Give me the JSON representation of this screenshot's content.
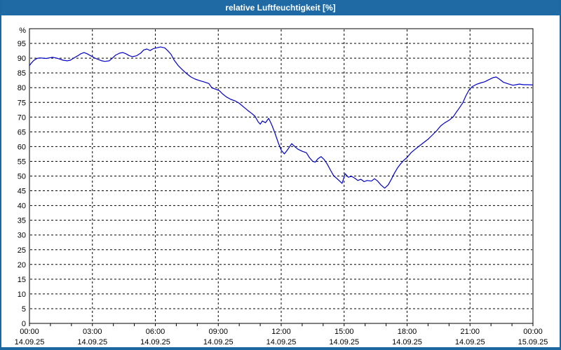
{
  "window": {
    "title": "relative Luftfeuchtigkeit [%]"
  },
  "colors": {
    "titlebar": "#1f6aa5",
    "window_border": "#1c67a0",
    "line": "#0000c8",
    "grid": "#000000",
    "frame": "#000000",
    "background": "#ffffff",
    "label_text": "#000000"
  },
  "chart_data": {
    "type": "line",
    "title": "relative Luftfeuchtigkeit [%]",
    "unit_label": "%",
    "xlabel": "",
    "ylabel": "%",
    "xlim": [
      0,
      24
    ],
    "ylim": [
      0,
      100
    ],
    "grid": true,
    "legend": "none",
    "y_ticks": [
      0,
      5,
      10,
      15,
      20,
      25,
      30,
      35,
      40,
      45,
      50,
      55,
      60,
      65,
      70,
      75,
      80,
      85,
      90,
      95
    ],
    "x_ticks": [
      {
        "hours": 0,
        "time": "00:00",
        "date": "14.09.25"
      },
      {
        "hours": 3,
        "time": "03:00",
        "date": "14.09.25"
      },
      {
        "hours": 6,
        "time": "06:00",
        "date": "14.09.25"
      },
      {
        "hours": 9,
        "time": "09:00",
        "date": "14.09.25"
      },
      {
        "hours": 12,
        "time": "12:00",
        "date": "14.09.25"
      },
      {
        "hours": 15,
        "time": "15:00",
        "date": "14.09.25"
      },
      {
        "hours": 18,
        "time": "18:00",
        "date": "14.09.25"
      },
      {
        "hours": 21,
        "time": "21:00",
        "date": "14.09.25"
      },
      {
        "hours": 24,
        "time": "00:00",
        "date": "15.09.25"
      }
    ],
    "minor_x_tick_every_hours": 1,
    "series": [
      {
        "name": "relative Luftfeuchtigkeit",
        "points": [
          [
            0.0,
            87.5
          ],
          [
            0.1,
            88.4
          ],
          [
            0.2,
            89.2
          ],
          [
            0.35,
            89.9
          ],
          [
            0.5,
            90.1
          ],
          [
            0.65,
            90.0
          ],
          [
            0.8,
            89.9
          ],
          [
            0.95,
            90.1
          ],
          [
            1.1,
            90.3
          ],
          [
            1.25,
            90.1
          ],
          [
            1.4,
            89.8
          ],
          [
            1.6,
            89.3
          ],
          [
            1.8,
            89.1
          ],
          [
            1.95,
            89.3
          ],
          [
            2.1,
            90.0
          ],
          [
            2.3,
            90.8
          ],
          [
            2.45,
            91.5
          ],
          [
            2.6,
            91.9
          ],
          [
            2.75,
            91.5
          ],
          [
            2.95,
            90.7
          ],
          [
            3.1,
            90.1
          ],
          [
            3.3,
            89.5
          ],
          [
            3.45,
            89.1
          ],
          [
            3.6,
            88.9
          ],
          [
            3.8,
            89.1
          ],
          [
            3.95,
            90.0
          ],
          [
            4.1,
            91.0
          ],
          [
            4.3,
            91.7
          ],
          [
            4.45,
            91.9
          ],
          [
            4.6,
            91.5
          ],
          [
            4.75,
            90.9
          ],
          [
            4.9,
            90.5
          ],
          [
            5.1,
            90.8
          ],
          [
            5.3,
            91.7
          ],
          [
            5.45,
            92.8
          ],
          [
            5.6,
            93.1
          ],
          [
            5.75,
            92.6
          ],
          [
            5.9,
            93.2
          ],
          [
            6.05,
            93.5
          ],
          [
            6.25,
            93.8
          ],
          [
            6.45,
            93.5
          ],
          [
            6.6,
            92.5
          ],
          [
            6.75,
            91.3
          ],
          [
            6.9,
            89.3
          ],
          [
            7.1,
            87.4
          ],
          [
            7.3,
            86.0
          ],
          [
            7.5,
            84.7
          ],
          [
            7.7,
            83.6
          ],
          [
            7.9,
            82.9
          ],
          [
            8.1,
            82.4
          ],
          [
            8.3,
            82.0
          ],
          [
            8.55,
            81.4
          ],
          [
            8.7,
            79.9
          ],
          [
            8.9,
            79.4
          ],
          [
            9.05,
            79.0
          ],
          [
            9.2,
            77.9
          ],
          [
            9.4,
            76.8
          ],
          [
            9.6,
            76.0
          ],
          [
            9.8,
            75.5
          ],
          [
            10.0,
            74.7
          ],
          [
            10.2,
            73.5
          ],
          [
            10.4,
            72.3
          ],
          [
            10.6,
            71.2
          ],
          [
            10.75,
            70.3
          ],
          [
            10.9,
            68.4
          ],
          [
            11.0,
            67.6
          ],
          [
            11.1,
            68.7
          ],
          [
            11.25,
            68.1
          ],
          [
            11.4,
            69.6
          ],
          [
            11.55,
            67.4
          ],
          [
            11.7,
            64.6
          ],
          [
            11.85,
            61.5
          ],
          [
            12.0,
            58.8
          ],
          [
            12.15,
            57.5
          ],
          [
            12.3,
            58.9
          ],
          [
            12.5,
            61.0
          ],
          [
            12.65,
            60.0
          ],
          [
            12.8,
            59.1
          ],
          [
            13.0,
            58.4
          ],
          [
            13.2,
            57.9
          ],
          [
            13.35,
            56.2
          ],
          [
            13.5,
            55.0
          ],
          [
            13.62,
            54.7
          ],
          [
            13.75,
            55.9
          ],
          [
            13.9,
            56.6
          ],
          [
            14.05,
            55.6
          ],
          [
            14.2,
            54.0
          ],
          [
            14.35,
            52.0
          ],
          [
            14.5,
            50.1
          ],
          [
            14.65,
            49.2
          ],
          [
            14.8,
            48.2
          ],
          [
            14.9,
            47.5
          ],
          [
            15.05,
            50.8
          ],
          [
            15.2,
            49.6
          ],
          [
            15.35,
            49.9
          ],
          [
            15.5,
            49.3
          ],
          [
            15.65,
            48.5
          ],
          [
            15.8,
            48.9
          ],
          [
            15.95,
            48.1
          ],
          [
            16.1,
            48.5
          ],
          [
            16.3,
            48.3
          ],
          [
            16.45,
            49.1
          ],
          [
            16.6,
            48.3
          ],
          [
            16.75,
            47.0
          ],
          [
            16.93,
            45.9
          ],
          [
            17.1,
            47.0
          ],
          [
            17.25,
            48.9
          ],
          [
            17.4,
            51.0
          ],
          [
            17.55,
            52.8
          ],
          [
            17.7,
            54.2
          ],
          [
            17.85,
            55.4
          ],
          [
            18.0,
            56.3
          ],
          [
            18.2,
            58.0
          ],
          [
            18.4,
            59.2
          ],
          [
            18.6,
            60.3
          ],
          [
            18.8,
            61.4
          ],
          [
            19.0,
            62.5
          ],
          [
            19.2,
            63.9
          ],
          [
            19.4,
            65.3
          ],
          [
            19.6,
            67.0
          ],
          [
            19.8,
            68.1
          ],
          [
            20.0,
            68.9
          ],
          [
            20.2,
            70.1
          ],
          [
            20.35,
            71.7
          ],
          [
            20.5,
            73.2
          ],
          [
            20.65,
            74.8
          ],
          [
            20.8,
            77.2
          ],
          [
            20.95,
            79.2
          ],
          [
            21.1,
            80.3
          ],
          [
            21.3,
            81.1
          ],
          [
            21.5,
            81.6
          ],
          [
            21.7,
            82.0
          ],
          [
            21.9,
            82.7
          ],
          [
            22.1,
            83.4
          ],
          [
            22.25,
            83.6
          ],
          [
            22.4,
            82.9
          ],
          [
            22.6,
            81.8
          ],
          [
            22.85,
            81.2
          ],
          [
            23.05,
            80.8
          ],
          [
            23.2,
            81.0
          ],
          [
            23.35,
            81.2
          ],
          [
            23.55,
            81.0
          ],
          [
            23.75,
            81.0
          ],
          [
            24.0,
            80.9
          ]
        ]
      }
    ]
  }
}
